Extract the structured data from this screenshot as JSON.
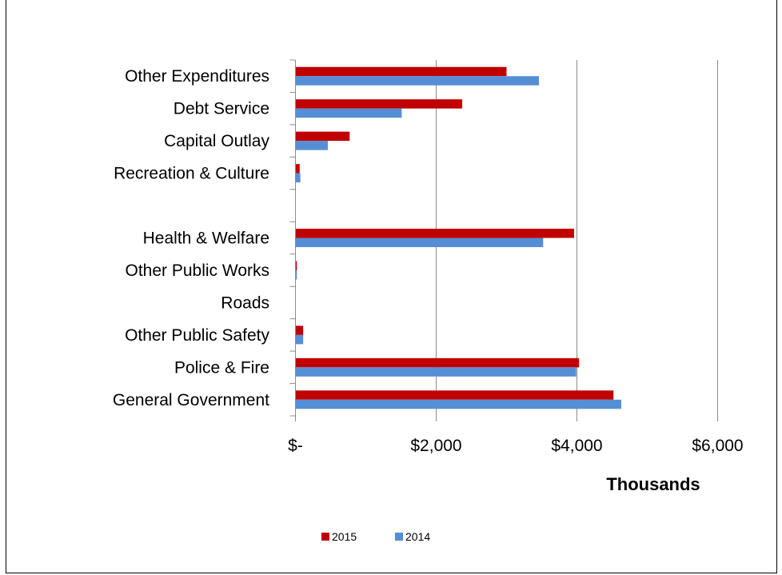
{
  "chart_data": {
    "type": "bar",
    "orientation": "horizontal",
    "categories": [
      "General Government",
      "Police & Fire",
      "Other Public Safety",
      "Roads",
      "Other Public Works",
      "Health & Welfare",
      "",
      "Recreation & Culture",
      "Capital Outlay",
      "Debt Service",
      "Other Expenditures"
    ],
    "series": [
      {
        "name": "2015",
        "color": "#c00000",
        "values": [
          4520,
          4030,
          110,
          0,
          20,
          3960,
          0,
          60,
          770,
          2370,
          3000
        ]
      },
      {
        "name": "2014",
        "color": "#558ed5",
        "values": [
          4630,
          3990,
          110,
          0,
          20,
          3520,
          0,
          70,
          460,
          1510,
          3460
        ]
      }
    ],
    "xlim": [
      0,
      6000
    ],
    "xticks": [
      0,
      2000,
      4000,
      6000
    ],
    "xtick_labels": [
      "$-",
      "$2,000",
      "$4,000",
      "$6,000"
    ],
    "xlabel": "Thousands",
    "grid": true,
    "legend_position": "bottom"
  }
}
